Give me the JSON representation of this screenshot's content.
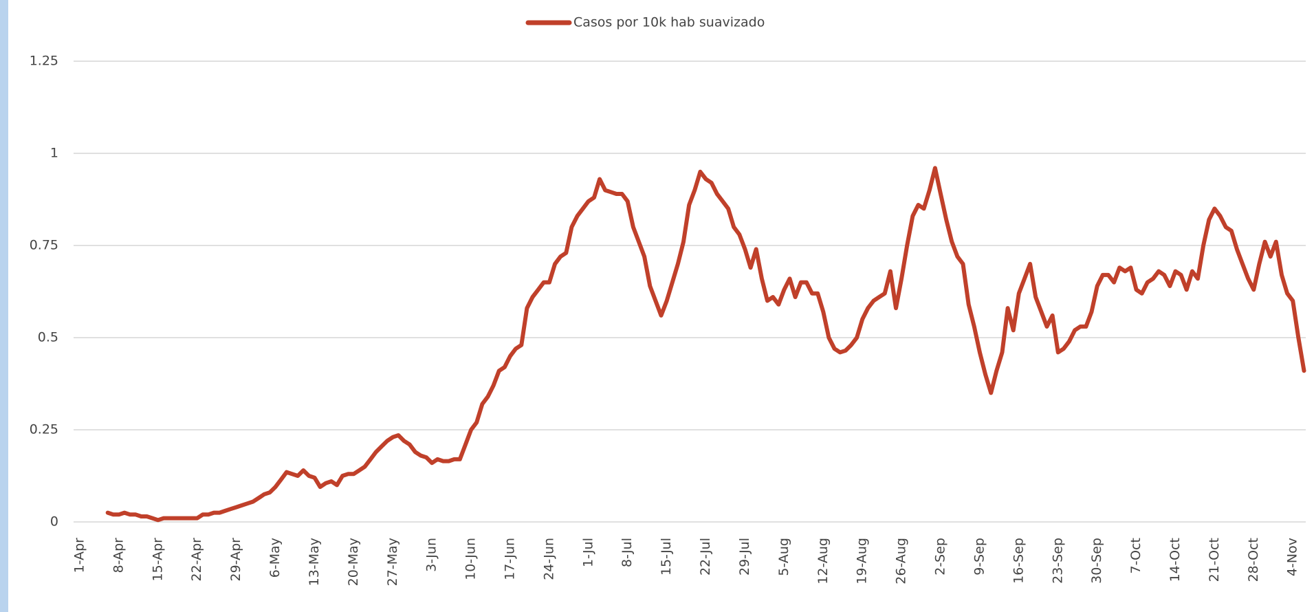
{
  "chart_data": {
    "type": "line",
    "categories": [
      "1-Apr",
      null,
      null,
      null,
      null,
      null,
      null,
      "8-Apr",
      null,
      null,
      null,
      null,
      null,
      null,
      "15-Apr",
      null,
      null,
      null,
      null,
      null,
      null,
      "22-Apr",
      null,
      null,
      null,
      null,
      null,
      null,
      "29-Apr",
      null,
      null,
      null,
      null,
      null,
      null,
      "6-May",
      null,
      null,
      null,
      null,
      null,
      null,
      "13-May",
      null,
      null,
      null,
      null,
      null,
      null,
      "20-May",
      null,
      null,
      null,
      null,
      null,
      null,
      "27-May",
      null,
      null,
      null,
      null,
      null,
      null,
      "3-Jun",
      null,
      null,
      null,
      null,
      null,
      null,
      "10-Jun",
      null,
      null,
      null,
      null,
      null,
      null,
      "17-Jun",
      null,
      null,
      null,
      null,
      null,
      null,
      "24-Jun",
      null,
      null,
      null,
      null,
      null,
      null,
      "1-Jul",
      null,
      null,
      null,
      null,
      null,
      null,
      "8-Jul",
      null,
      null,
      null,
      null,
      null,
      null,
      "15-Jul",
      null,
      null,
      null,
      null,
      null,
      null,
      "22-Jul",
      null,
      null,
      null,
      null,
      null,
      null,
      "29-Jul",
      null,
      null,
      null,
      null,
      null,
      null,
      "5-Aug",
      null,
      null,
      null,
      null,
      null,
      null,
      "12-Aug",
      null,
      null,
      null,
      null,
      null,
      null,
      "19-Aug",
      null,
      null,
      null,
      null,
      null,
      null,
      "26-Aug",
      null,
      null,
      null,
      null,
      null,
      null,
      "2-Sep",
      null,
      null,
      null,
      null,
      null,
      null,
      "9-Sep",
      null,
      null,
      null,
      null,
      null,
      null,
      "16-Sep",
      null,
      null,
      null,
      null,
      null,
      null,
      "23-Sep",
      null,
      null,
      null,
      null,
      null,
      null,
      "30-Sep",
      null,
      null,
      null,
      null,
      null,
      null,
      "7-Oct",
      null,
      null,
      null,
      null,
      null,
      null,
      "14-Oct",
      null,
      null,
      null,
      null,
      null,
      null,
      "21-Oct",
      null,
      null,
      null,
      null,
      null,
      null,
      "28-Oct",
      null,
      null,
      null,
      null,
      null,
      null,
      "4-Nov",
      null,
      null
    ],
    "series": [
      {
        "name": "Casos por 10k hab suavizado",
        "color": "#c0402a",
        "values": [
          null,
          null,
          null,
          null,
          null,
          0.025,
          0.02,
          0.02,
          0.025,
          0.02,
          0.02,
          0.015,
          0.015,
          0.01,
          0.005,
          0.01,
          0.01,
          0.01,
          0.01,
          0.01,
          0.01,
          0.01,
          0.02,
          0.02,
          0.025,
          0.025,
          0.03,
          0.035,
          0.04,
          0.045,
          0.05,
          0.055,
          0.065,
          0.075,
          0.08,
          0.095,
          0.115,
          0.135,
          0.13,
          0.125,
          0.14,
          0.125,
          0.12,
          0.095,
          0.105,
          0.11,
          0.1,
          0.125,
          0.13,
          0.13,
          0.14,
          0.15,
          0.17,
          0.19,
          0.205,
          0.22,
          0.23,
          0.235,
          0.22,
          0.21,
          0.19,
          0.18,
          0.175,
          0.16,
          0.17,
          0.165,
          0.165,
          0.17,
          0.17,
          0.21,
          0.25,
          0.27,
          0.32,
          0.34,
          0.37,
          0.41,
          0.42,
          0.45,
          0.47,
          0.48,
          0.58,
          0.61,
          0.63,
          0.65,
          0.65,
          0.7,
          0.72,
          0.73,
          0.8,
          0.83,
          0.85,
          0.87,
          0.88,
          0.93,
          0.9,
          0.895,
          0.89,
          0.89,
          0.87,
          0.8,
          0.76,
          0.72,
          0.64,
          0.6,
          0.56,
          0.6,
          0.65,
          0.7,
          0.76,
          0.86,
          0.9,
          0.95,
          0.93,
          0.92,
          0.89,
          0.87,
          0.85,
          0.8,
          0.78,
          0.74,
          0.69,
          0.74,
          0.66,
          0.6,
          0.61,
          0.59,
          0.63,
          0.66,
          0.61,
          0.65,
          0.65,
          0.62,
          0.62,
          0.57,
          0.5,
          0.47,
          0.46,
          0.465,
          0.48,
          0.5,
          0.55,
          0.58,
          0.6,
          0.61,
          0.62,
          0.68,
          0.58,
          0.66,
          0.75,
          0.83,
          0.86,
          0.85,
          0.9,
          0.96,
          0.89,
          0.82,
          0.76,
          0.72,
          0.7,
          0.59,
          0.53,
          0.46,
          0.4,
          0.35,
          0.41,
          0.46,
          0.58,
          0.52,
          0.62,
          0.66,
          0.7,
          0.61,
          0.57,
          0.53,
          0.56,
          0.46,
          0.47,
          0.49,
          0.52,
          0.53,
          0.53,
          0.57,
          0.64,
          0.67,
          0.67,
          0.65,
          0.69,
          0.68,
          0.69,
          0.63,
          0.62,
          0.65,
          0.66,
          0.68,
          0.67,
          0.64,
          0.68,
          0.67,
          0.63,
          0.68,
          0.66,
          0.75,
          0.82,
          0.85,
          0.83,
          0.8,
          0.79,
          0.74,
          0.7,
          0.66,
          0.63,
          0.7,
          0.76,
          0.72,
          0.76,
          0.67,
          0.62,
          0.6,
          0.5,
          0.41
        ]
      }
    ],
    "ylim": [
      0,
      1.25
    ],
    "yticks": [
      0,
      0.25,
      0.5,
      0.75,
      1,
      1.25
    ],
    "grid": true,
    "legend": "top"
  }
}
